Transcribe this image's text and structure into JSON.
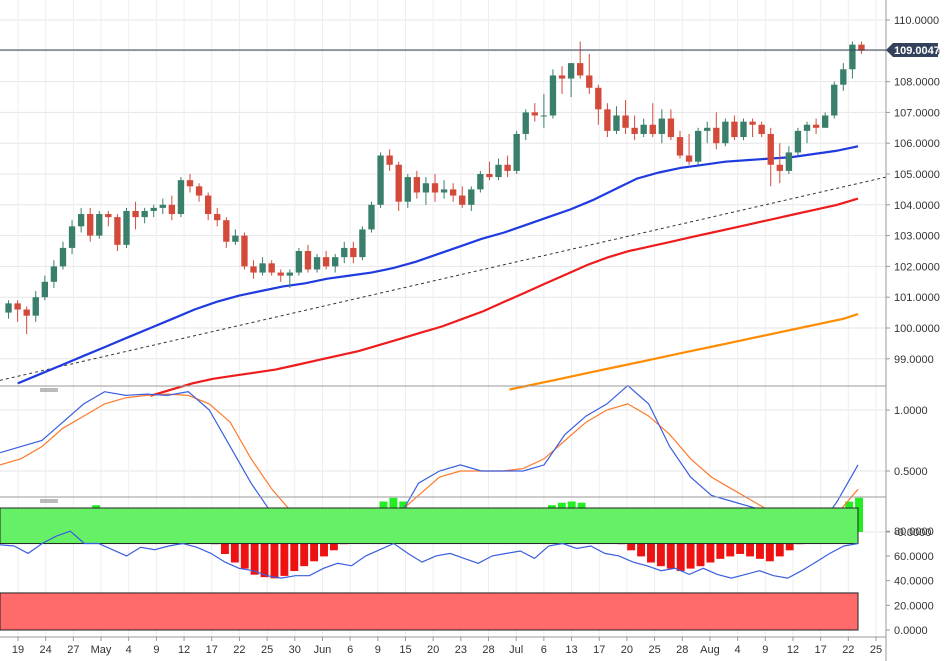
{
  "current_price": "109.0047",
  "colors": {
    "up": "#3a7f6b",
    "down": "#d34a3a",
    "sma50": "#1f3be0",
    "sma100": "#ee1c1c",
    "sma200": "#ff8c00",
    "trend": "#333333",
    "stoch_k": "#3a5ee0",
    "stoch_d": "#ff7a2a",
    "hist_pos": "#22ee22",
    "hist_neg": "#ee1111",
    "rsi_line": "#3a5ee0",
    "rsi_over": "#66f066",
    "rsi_under": "#ff6b6b",
    "price_box": "#33415a"
  },
  "x_axis": [
    "19",
    "24",
    "27",
    "May",
    "4",
    "9",
    "12",
    "17",
    "22",
    "25",
    "30",
    "Jun",
    "6",
    "9",
    "15",
    "20",
    "23",
    "28",
    "Jul",
    "6",
    "13",
    "17",
    "20",
    "25",
    "28",
    "Aug",
    "4",
    "9",
    "12",
    "17",
    "22",
    "25"
  ],
  "price_axis": [
    "110.0000",
    "109.0000",
    "108.0000",
    "107.0000",
    "106.0000",
    "105.0000",
    "104.0000",
    "103.0000",
    "102.0000",
    "101.0000",
    "100.0000",
    "99.0000"
  ],
  "osc_axis": [
    "1.0000",
    "0.5000",
    "-0.0000"
  ],
  "rsi_axis": [
    "80.0000",
    "60.0000",
    "40.0000",
    "20.0000",
    "0.0000"
  ],
  "chart_data": [
    {
      "type": "candlestick",
      "title": "",
      "y_range": [
        98.0,
        110.5
      ],
      "candles": [
        [
          100.5,
          100.9,
          100.3,
          100.8
        ],
        [
          100.8,
          100.9,
          100.2,
          100.6
        ],
        [
          100.6,
          100.7,
          99.8,
          100.4
        ],
        [
          100.4,
          101.2,
          100.2,
          101.0
        ],
        [
          101.0,
          101.7,
          100.9,
          101.5
        ],
        [
          101.5,
          102.2,
          101.3,
          102.0
        ],
        [
          102.0,
          102.8,
          101.9,
          102.6
        ],
        [
          102.6,
          103.5,
          102.4,
          103.3
        ],
        [
          103.3,
          103.9,
          103.1,
          103.7
        ],
        [
          103.7,
          103.9,
          102.8,
          103.0
        ],
        [
          103.0,
          103.8,
          102.9,
          103.7
        ],
        [
          103.7,
          103.8,
          103.3,
          103.6
        ],
        [
          103.6,
          103.7,
          102.5,
          102.7
        ],
        [
          102.7,
          103.9,
          102.6,
          103.8
        ],
        [
          103.8,
          104.1,
          103.2,
          103.6
        ],
        [
          103.6,
          103.9,
          103.4,
          103.8
        ],
        [
          103.8,
          104.0,
          103.6,
          103.9
        ],
        [
          103.9,
          104.2,
          103.7,
          104.0
        ],
        [
          104.0,
          104.3,
          103.5,
          103.7
        ],
        [
          103.7,
          104.9,
          103.6,
          104.8
        ],
        [
          104.8,
          105.0,
          104.4,
          104.6
        ],
        [
          104.6,
          104.7,
          104.1,
          104.3
        ],
        [
          104.3,
          104.4,
          103.5,
          103.7
        ],
        [
          103.7,
          103.9,
          103.3,
          103.5
        ],
        [
          103.5,
          103.6,
          102.6,
          102.8
        ],
        [
          102.8,
          103.2,
          102.7,
          103.0
        ],
        [
          103.0,
          103.1,
          101.9,
          102.0
        ],
        [
          102.0,
          102.2,
          101.6,
          101.8
        ],
        [
          101.8,
          102.3,
          101.7,
          102.1
        ],
        [
          102.1,
          102.2,
          101.7,
          101.8
        ],
        [
          101.8,
          101.9,
          101.5,
          101.7
        ],
        [
          101.7,
          101.9,
          101.3,
          101.8
        ],
        [
          101.8,
          102.6,
          101.7,
          102.5
        ],
        [
          102.5,
          102.7,
          101.8,
          101.9
        ],
        [
          101.9,
          102.4,
          101.8,
          102.3
        ],
        [
          102.3,
          102.5,
          101.9,
          102.0
        ],
        [
          102.0,
          102.4,
          101.8,
          102.3
        ],
        [
          102.3,
          102.8,
          102.1,
          102.6
        ],
        [
          102.6,
          102.8,
          102.1,
          102.3
        ],
        [
          102.3,
          103.3,
          102.2,
          103.2
        ],
        [
          103.2,
          104.1,
          103.1,
          104.0
        ],
        [
          104.0,
          105.7,
          103.9,
          105.6
        ],
        [
          105.6,
          105.8,
          105.1,
          105.3
        ],
        [
          105.3,
          105.4,
          103.8,
          104.1
        ],
        [
          104.1,
          105.0,
          103.9,
          104.9
        ],
        [
          104.9,
          105.1,
          104.2,
          104.4
        ],
        [
          104.4,
          104.9,
          104.0,
          104.7
        ],
        [
          104.7,
          105.0,
          104.1,
          104.4
        ],
        [
          104.4,
          104.8,
          104.2,
          104.5
        ],
        [
          104.5,
          104.7,
          104.1,
          104.3
        ],
        [
          104.3,
          104.6,
          103.9,
          104.0
        ],
        [
          104.0,
          104.6,
          103.8,
          104.5
        ],
        [
          104.5,
          105.1,
          104.4,
          105.0
        ],
        [
          105.0,
          105.4,
          104.8,
          104.9
        ],
        [
          104.9,
          105.5,
          104.8,
          105.3
        ],
        [
          105.3,
          105.6,
          104.9,
          105.1
        ],
        [
          105.1,
          106.4,
          105.0,
          106.3
        ],
        [
          106.3,
          107.1,
          106.1,
          107.0
        ],
        [
          107.0,
          107.3,
          106.7,
          106.9
        ],
        [
          106.9,
          107.6,
          106.5,
          106.9
        ],
        [
          106.9,
          108.4,
          106.8,
          108.2
        ],
        [
          108.2,
          108.5,
          107.6,
          108.1
        ],
        [
          108.1,
          108.6,
          107.5,
          108.6
        ],
        [
          108.6,
          109.3,
          108.1,
          108.2
        ],
        [
          108.2,
          108.9,
          107.6,
          107.8
        ],
        [
          107.8,
          107.9,
          106.6,
          107.1
        ],
        [
          107.1,
          107.3,
          106.2,
          106.4
        ],
        [
          106.4,
          107.2,
          106.3,
          106.9
        ],
        [
          106.9,
          107.4,
          106.3,
          106.5
        ],
        [
          106.5,
          106.9,
          106.1,
          106.3
        ],
        [
          106.3,
          106.8,
          106.2,
          106.6
        ],
        [
          106.6,
          107.3,
          106.2,
          106.3
        ],
        [
          106.3,
          107.1,
          106.0,
          106.8
        ],
        [
          106.8,
          107.1,
          106.1,
          106.2
        ],
        [
          106.2,
          106.4,
          105.5,
          105.6
        ],
        [
          105.6,
          106.3,
          105.3,
          105.4
        ],
        [
          105.4,
          106.5,
          105.3,
          106.4
        ],
        [
          106.4,
          106.7,
          106.0,
          106.5
        ],
        [
          106.5,
          107.0,
          105.8,
          106.0
        ],
        [
          106.0,
          106.8,
          105.9,
          106.7
        ],
        [
          106.7,
          106.9,
          106.1,
          106.2
        ],
        [
          106.2,
          106.8,
          106.1,
          106.7
        ],
        [
          106.7,
          106.8,
          106.2,
          106.6
        ],
        [
          106.6,
          106.7,
          106.2,
          106.3
        ],
        [
          106.3,
          106.5,
          104.6,
          105.3
        ],
        [
          105.3,
          106.0,
          104.7,
          105.1
        ],
        [
          105.1,
          105.9,
          105.0,
          105.7
        ],
        [
          105.7,
          106.5,
          105.6,
          106.4
        ],
        [
          106.4,
          106.7,
          106.0,
          106.6
        ],
        [
          106.6,
          106.8,
          106.3,
          106.5
        ],
        [
          106.5,
          107.0,
          106.5,
          106.9
        ],
        [
          106.9,
          108.0,
          106.8,
          107.9
        ],
        [
          107.9,
          108.6,
          107.7,
          108.4
        ],
        [
          108.4,
          109.3,
          108.1,
          109.2
        ],
        [
          109.2,
          109.3,
          108.9,
          109.0
        ]
      ],
      "sma50": [
        98.2,
        98.5,
        98.8,
        99.1,
        99.4,
        99.7,
        100.0,
        100.3,
        100.6,
        100.85,
        101.05,
        101.2,
        101.35,
        101.45,
        101.6,
        101.7,
        101.8,
        101.95,
        102.15,
        102.4,
        102.65,
        102.9,
        103.1,
        103.35,
        103.6,
        103.85,
        104.15,
        104.5,
        104.85,
        105.05,
        105.2,
        105.3,
        105.4,
        105.45,
        105.5,
        105.55,
        105.65,
        105.75,
        105.9
      ],
      "sma100": [
        97.8,
        98.0,
        98.2,
        98.35,
        98.45,
        98.55,
        98.65,
        98.8,
        98.95,
        99.1,
        99.25,
        99.45,
        99.65,
        99.85,
        100.05,
        100.3,
        100.55,
        100.85,
        101.15,
        101.45,
        101.75,
        102.05,
        102.3,
        102.5,
        102.65,
        102.8,
        102.95,
        103.1,
        103.25,
        103.4,
        103.55,
        103.7,
        103.85,
        104.0,
        104.2
      ],
      "sma200": [
        98.0,
        98.1,
        98.2,
        98.3,
        98.4,
        98.5,
        98.6,
        98.7,
        98.8,
        98.9,
        99.0,
        99.1,
        99.2,
        99.3,
        99.4,
        99.5,
        99.6,
        99.7,
        99.8,
        99.9,
        100.0,
        100.1,
        100.2,
        100.3,
        100.45
      ],
      "trendline": [
        [
          0,
          98.3
        ],
        [
          100,
          104.9
        ]
      ]
    },
    {
      "type": "line",
      "title": "",
      "y_range": [
        -0.45,
        1.25
      ],
      "k_line": [
        0.65,
        0.7,
        0.75,
        0.9,
        1.05,
        1.15,
        1.12,
        1.13,
        1.12,
        1.15,
        1.0,
        0.7,
        0.4,
        0.15,
        -0.05,
        0.0,
        -0.05,
        -0.05,
        0.0,
        0.1,
        0.4,
        0.5,
        0.55,
        0.5,
        0.5,
        0.5,
        0.55,
        0.8,
        0.95,
        1.05,
        1.2,
        1.05,
        0.7,
        0.45,
        0.3,
        0.25,
        0.2,
        0.15,
        0.05,
        0.0,
        0.25,
        0.55
      ],
      "d_line": [
        0.55,
        0.6,
        0.7,
        0.85,
        0.95,
        1.05,
        1.1,
        1.12,
        1.13,
        1.12,
        1.05,
        0.9,
        0.6,
        0.35,
        0.15,
        0.05,
        0.02,
        0.0,
        0.05,
        0.15,
        0.3,
        0.45,
        0.5,
        0.5,
        0.5,
        0.52,
        0.6,
        0.75,
        0.9,
        1.0,
        1.05,
        0.95,
        0.8,
        0.6,
        0.45,
        0.35,
        0.25,
        0.15,
        0.08,
        0.05,
        0.15,
        0.35
      ],
      "histogram": [
        0.08,
        0.08,
        0.08,
        0.08,
        0.08,
        0.1,
        0.12,
        0.18,
        0.2,
        0.22,
        0.2,
        0.18,
        0.15,
        0.12,
        0.1,
        0.1,
        0.08,
        0.08,
        0.06,
        0.04,
        0.02,
        -0.1,
        -0.18,
        -0.25,
        -0.3,
        -0.35,
        -0.37,
        -0.38,
        -0.36,
        -0.32,
        -0.28,
        -0.24,
        -0.2,
        -0.15,
        -0.1,
        -0.05,
        0.05,
        0.15,
        0.25,
        0.28,
        0.25,
        0.2,
        0.15,
        0.12,
        0.1,
        0.05,
        0.02,
        0.01,
        0.01,
        0.01,
        0.02,
        0.05,
        0.1,
        0.15,
        0.2,
        0.22,
        0.24,
        0.25,
        0.24,
        0.2,
        0.12,
        0.05,
        -0.1,
        -0.15,
        -0.2,
        -0.25,
        -0.28,
        -0.3,
        -0.32,
        -0.3,
        -0.28,
        -0.25,
        -0.22,
        -0.2,
        -0.18,
        -0.2,
        -0.22,
        -0.24,
        -0.2,
        -0.15,
        -0.1,
        -0.05,
        0.02,
        0.1,
        0.18,
        0.25,
        0.28
      ]
    },
    {
      "type": "line",
      "title": "",
      "y_range": [
        0,
        100
      ],
      "overbought": 70,
      "oversold": 30,
      "rsi": [
        69,
        68,
        62,
        70,
        76,
        80,
        70,
        70,
        65,
        60,
        67,
        65,
        68,
        70,
        67,
        62,
        55,
        50,
        48,
        44,
        42,
        44,
        44,
        50,
        54,
        52,
        60,
        65,
        70,
        62,
        55,
        60,
        62,
        58,
        54,
        60,
        62,
        64,
        58,
        68,
        70,
        66,
        68,
        62,
        60,
        55,
        52,
        48,
        50,
        45,
        50,
        45,
        42,
        45,
        48,
        44,
        42,
        48,
        55,
        62,
        68,
        70
      ]
    }
  ]
}
